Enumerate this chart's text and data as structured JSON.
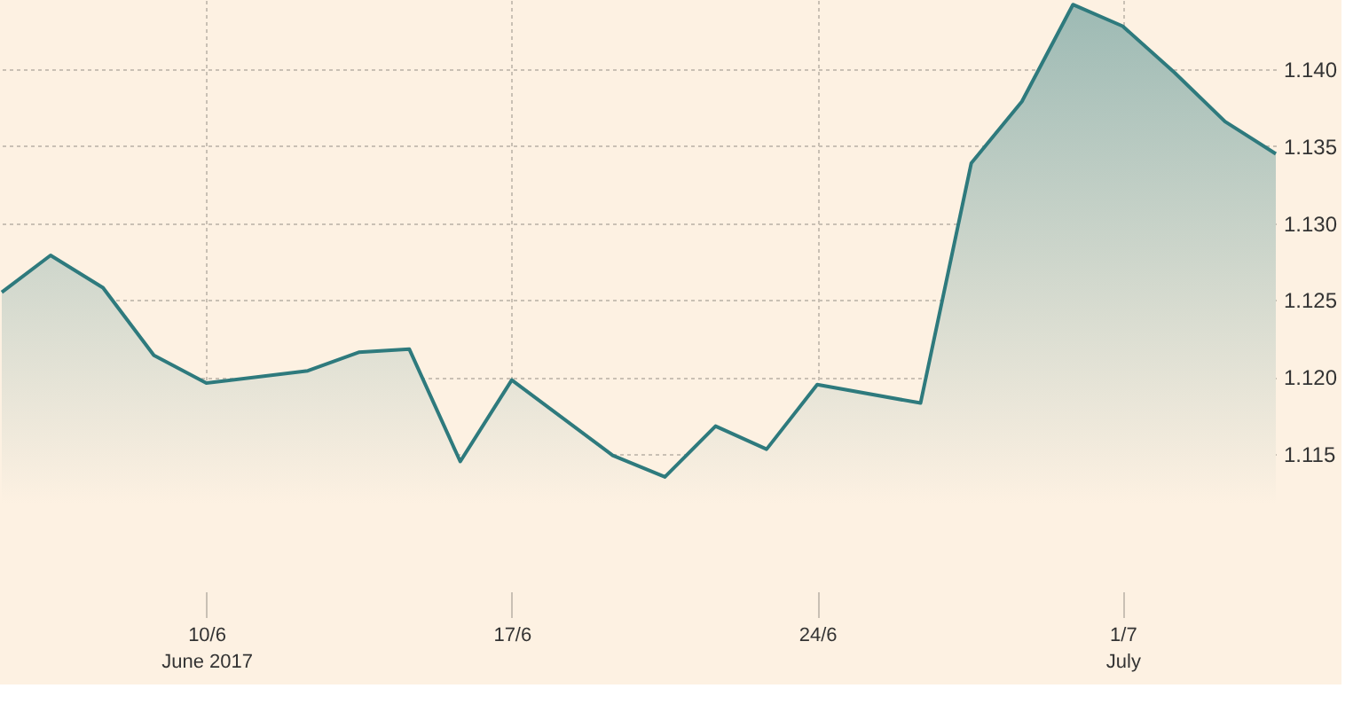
{
  "chart_data": {
    "type": "area",
    "x": [
      "2017-06-05T07:30",
      "2017-06-06T10:20",
      "2017-06-07T15:10",
      "2017-06-08T19:10",
      "2017-06-10T00:00",
      "2017-06-12T07:50",
      "2017-06-13T11:50",
      "2017-06-14T15:40",
      "2017-06-15T19:40",
      "2017-06-17T00:00",
      "2017-06-19T07:30",
      "2017-06-20T12:15",
      "2017-06-21T16:05",
      "2017-06-22T20:10",
      "2017-06-24T00:00",
      "2017-06-26T08:50",
      "2017-06-27T12:45",
      "2017-06-28T16:35",
      "2017-06-29T20:40",
      "2017-07-01T00:00",
      "2017-07-02T04:20",
      "2017-07-03T08:20",
      "2017-07-04T12:15"
    ],
    "series": [
      {
        "color": "#2e7a7d",
        "values": [
          1.1255,
          1.1279,
          1.1258,
          1.1214,
          1.1196,
          1.1204,
          1.1216,
          1.1218,
          1.1145,
          1.1198,
          1.1149,
          1.1135,
          1.1168,
          1.1153,
          1.1195,
          1.1183,
          1.1339,
          1.1379,
          1.1442,
          1.1428,
          1.1398,
          1.1366,
          1.1345
        ]
      }
    ],
    "xlim": [
      "2017-06-05T07:30",
      "2017-07-04T12:15"
    ],
    "xticks": [
      {
        "value": "2017-06-10",
        "label": "10/6\nJune 2017"
      },
      {
        "value": "2017-06-17",
        "label": "17/6"
      },
      {
        "value": "2017-06-24",
        "label": "24/6"
      },
      {
        "value": "2017-07-01",
        "label": "1/7\nJuly"
      }
    ],
    "ylim": [
      1.106,
      1.1445
    ],
    "yticks": [
      {
        "value": 1.115,
        "label": "1.115"
      },
      {
        "value": 1.12,
        "label": "1.120"
      },
      {
        "value": 1.125,
        "label": "1.125"
      },
      {
        "value": 1.13,
        "label": "1.130"
      },
      {
        "value": 1.135,
        "label": "1.135"
      },
      {
        "value": 1.14,
        "label": "1.140"
      }
    ],
    "grid": true,
    "marker": "none",
    "line_style": "solid"
  }
}
